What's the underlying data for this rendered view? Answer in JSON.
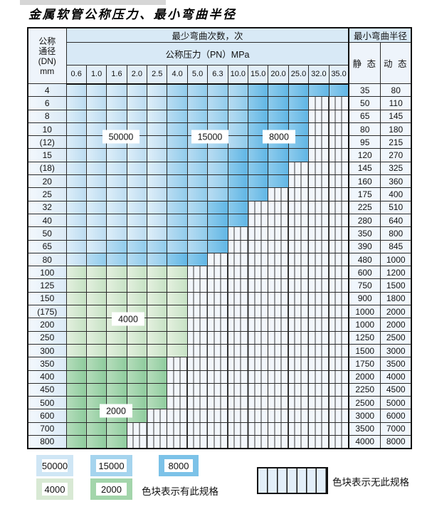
{
  "title": "金属软管公称压力、最小弯曲半径",
  "header": {
    "dn_lines": [
      "公称",
      "通径",
      "(DN)",
      "mm"
    ],
    "bend_cycles": "最少弯曲次数，次",
    "pressure": "公称压力（PN）MPa",
    "min_radius": "最小弯曲半径",
    "static": "静 态",
    "dynamic": "动 态"
  },
  "pressure_columns": [
    "0.6",
    "1.0",
    "1.6",
    "2.0",
    "2.5",
    "4.0",
    "5.0",
    "6.3",
    "10.0",
    "15.0",
    "20.0",
    "25.0",
    "32.0",
    "35.0"
  ],
  "zone_colors": {
    "cycles_50000": "#cfe6f5",
    "cycles_15000": "#a5d4ee",
    "cycles_8000": "#7cc2e8",
    "cycles_4000": "#d8e9d4",
    "cycles_2000": "#a3d5ab",
    "no_spec_hatch": "#f2f6fb"
  },
  "zone_labels": [
    "50000",
    "15000",
    "8000",
    "4000",
    "2000"
  ],
  "rows": [
    {
      "dn": "4",
      "static": "35",
      "dynamic": "80",
      "bands": {
        "light": 5,
        "medium": 9,
        "colored": 14
      }
    },
    {
      "dn": "6",
      "static": "50",
      "dynamic": "110",
      "bands": {
        "light": 5,
        "medium": 9,
        "colored": 12
      }
    },
    {
      "dn": "8",
      "static": "65",
      "dynamic": "145",
      "bands": {
        "light": 5,
        "medium": 9,
        "colored": 12
      }
    },
    {
      "dn": "10",
      "static": "80",
      "dynamic": "180",
      "bands": {
        "light": 5,
        "medium": 9,
        "colored": 12
      }
    },
    {
      "dn": "(12)",
      "static": "95",
      "dynamic": "215",
      "bands": {
        "light": 5,
        "medium": 9,
        "colored": 12
      }
    },
    {
      "dn": "15",
      "static": "120",
      "dynamic": "270",
      "bands": {
        "light": 5,
        "medium": 8,
        "colored": 12
      }
    },
    {
      "dn": "(18)",
      "static": "145",
      "dynamic": "325",
      "bands": {
        "light": 5,
        "medium": 8,
        "colored": 11
      }
    },
    {
      "dn": "20",
      "static": "160",
      "dynamic": "360",
      "bands": {
        "light": 5,
        "medium": 8,
        "colored": 11
      }
    },
    {
      "dn": "25",
      "static": "175",
      "dynamic": "400",
      "bands": {
        "light": 5,
        "medium": 8,
        "colored": 10
      }
    },
    {
      "dn": "32",
      "static": "225",
      "dynamic": "510",
      "bands": {
        "light": 5,
        "medium": 7,
        "colored": 9
      }
    },
    {
      "dn": "40",
      "static": "280",
      "dynamic": "640",
      "bands": {
        "light": 5,
        "medium": 7,
        "colored": 9
      }
    },
    {
      "dn": "50",
      "static": "350",
      "dynamic": "800",
      "bands": {
        "light": 5,
        "medium": 7,
        "colored": 8
      }
    },
    {
      "dn": "65",
      "static": "390",
      "dynamic": "845",
      "bands": {
        "light": 2,
        "medium": 7,
        "colored": 8
      }
    },
    {
      "dn": "80",
      "static": "480",
      "dynamic": "1000",
      "bands": {
        "light": 1,
        "medium": 5,
        "colored": 7
      }
    },
    {
      "dn": "100",
      "static": "600",
      "dynamic": "1200",
      "bands": {
        "green": "4000",
        "colored": 6
      }
    },
    {
      "dn": "125",
      "static": "750",
      "dynamic": "1500",
      "bands": {
        "green": "4000",
        "colored": 6
      }
    },
    {
      "dn": "150",
      "static": "900",
      "dynamic": "1800",
      "bands": {
        "green": "4000",
        "colored": 6
      }
    },
    {
      "dn": "(175)",
      "static": "1000",
      "dynamic": "2000",
      "bands": {
        "green": "4000",
        "colored": 6
      }
    },
    {
      "dn": "200",
      "static": "1000",
      "dynamic": "2000",
      "bands": {
        "green": "4000",
        "colored": 6
      }
    },
    {
      "dn": "250",
      "static": "1250",
      "dynamic": "2500",
      "bands": {
        "green": "4000",
        "colored": 6
      }
    },
    {
      "dn": "300",
      "static": "1500",
      "dynamic": "3000",
      "bands": {
        "green": "4000",
        "colored": 6
      }
    },
    {
      "dn": "350",
      "static": "1750",
      "dynamic": "3500",
      "bands": {
        "green": "2000",
        "colored": 5
      }
    },
    {
      "dn": "400",
      "static": "2000",
      "dynamic": "4000",
      "bands": {
        "green": "2000",
        "colored": 5
      }
    },
    {
      "dn": "450",
      "static": "2250",
      "dynamic": "4500",
      "bands": {
        "green": "2000",
        "colored": 5
      }
    },
    {
      "dn": "500",
      "static": "2500",
      "dynamic": "5000",
      "bands": {
        "green": "2000",
        "colored": 5
      }
    },
    {
      "dn": "600",
      "static": "3000",
      "dynamic": "6000",
      "bands": {
        "green": "2000",
        "colored": 4
      }
    },
    {
      "dn": "700",
      "static": "3500",
      "dynamic": "7000",
      "bands": {
        "green": "2000",
        "colored": 3
      }
    },
    {
      "dn": "800",
      "static": "4000",
      "dynamic": "8000",
      "bands": {
        "green": "2000",
        "colored": 3
      }
    }
  ],
  "legend": {
    "has_spec_label": "色块表示有此规格",
    "no_spec_label": "色块表示无此规格",
    "chips": [
      {
        "value": "50000",
        "color": "#cfe6f5"
      },
      {
        "value": "15000",
        "color": "#a5d4ee"
      },
      {
        "value": "8000",
        "color": "#7cc2e8"
      },
      {
        "value": "4000",
        "color": "#d8e9d4"
      },
      {
        "value": "2000",
        "color": "#a3d5ab"
      }
    ]
  }
}
